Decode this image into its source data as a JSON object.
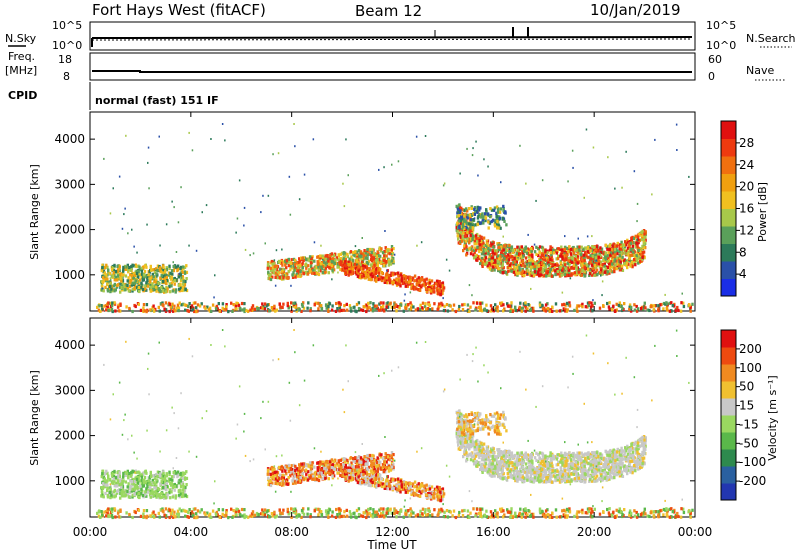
{
  "header": {
    "station": "Fort Hays West (fitACF)",
    "beam": "Beam 12",
    "date": "10/Jan/2019"
  },
  "top_panels": {
    "nsky_label": "N.Sky",
    "nsky_ticks": [
      "10^5",
      "10^0"
    ],
    "nsearch_label": "N.Search",
    "nsearch_ticks": [
      "10^5",
      "10^0"
    ],
    "freq_label_1": "Freq.",
    "freq_label_2": "[MHz]",
    "freq_ticks": [
      "18",
      "8"
    ],
    "nave_label": "Nave",
    "nave_ticks": [
      "60",
      "0"
    ],
    "cpid_label": "CPID",
    "cpid_text": "normal (fast) 151 IF"
  },
  "chart_data": [
    {
      "type": "heatmap",
      "name": "power",
      "ylabel": "Slant Range [km]",
      "yticks": [
        "1000",
        "2000",
        "3000",
        "4000"
      ],
      "ylim": [
        200,
        4600
      ],
      "xlim": [
        0,
        24
      ],
      "colorbar_label": "Power [dB]",
      "colorbar_ticks": [
        "4",
        "8",
        "12",
        "16",
        "20",
        "24",
        "28"
      ],
      "colorbar_colors": [
        "#1a2ee6",
        "#2a50a8",
        "#2c7a5a",
        "#5aa05a",
        "#a8c84a",
        "#f0c020",
        "#f0a010",
        "#f07010",
        "#ee3a10",
        "#e01010"
      ]
    },
    {
      "type": "heatmap",
      "name": "velocity",
      "ylabel": "Slant Range [km]",
      "yticks": [
        "1000",
        "2000",
        "3000",
        "4000"
      ],
      "ylim": [
        200,
        4600
      ],
      "xlim": [
        0,
        24
      ],
      "colorbar_label": "Velocity [m s⁻¹]",
      "colorbar_ticks": [
        "200",
        "100",
        "50",
        "15",
        "-15",
        "-50",
        "-100",
        "-200"
      ],
      "colorbar_colors": [
        "#2236b0",
        "#2a60a0",
        "#2e8a4e",
        "#5ab84a",
        "#9ad860",
        "#c8c8c8",
        "#f0c030",
        "#f08a20",
        "#ee4a10",
        "#e01010"
      ]
    }
  ],
  "xaxis": {
    "xticks": [
      "00:00",
      "04:00",
      "08:00",
      "12:00",
      "16:00",
      "20:00",
      "00:00"
    ],
    "xlabel": "Time UT"
  }
}
